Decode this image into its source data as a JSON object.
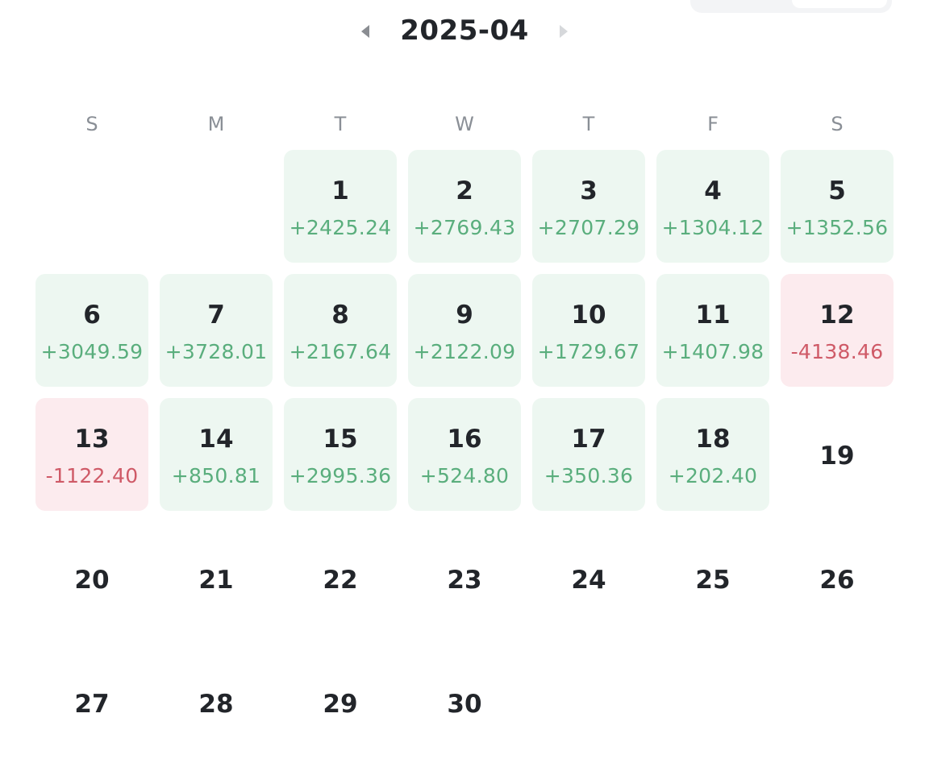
{
  "header": {
    "month": "2025-04"
  },
  "weekdays": [
    "S",
    "M",
    "T",
    "W",
    "T",
    "F",
    "S"
  ],
  "days": [
    {
      "day": 1,
      "pnl": "+2425.24"
    },
    {
      "day": 2,
      "pnl": "+2769.43"
    },
    {
      "day": 3,
      "pnl": "+2707.29"
    },
    {
      "day": 4,
      "pnl": "+1304.12"
    },
    {
      "day": 5,
      "pnl": "+1352.56"
    },
    {
      "day": 6,
      "pnl": "+3049.59"
    },
    {
      "day": 7,
      "pnl": "+3728.01"
    },
    {
      "day": 8,
      "pnl": "+2167.64"
    },
    {
      "day": 9,
      "pnl": "+2122.09"
    },
    {
      "day": 10,
      "pnl": "+1729.67"
    },
    {
      "day": 11,
      "pnl": "+1407.98"
    },
    {
      "day": 12,
      "pnl": "-4138.46"
    },
    {
      "day": 13,
      "pnl": "-1122.40"
    },
    {
      "day": 14,
      "pnl": "+850.81"
    },
    {
      "day": 15,
      "pnl": "+2995.36"
    },
    {
      "day": 16,
      "pnl": "+524.80"
    },
    {
      "day": 17,
      "pnl": "+350.36"
    },
    {
      "day": 18,
      "pnl": "+202.40"
    },
    {
      "day": 19
    },
    {
      "day": 20
    },
    {
      "day": 21
    },
    {
      "day": 22
    },
    {
      "day": 23
    },
    {
      "day": 24
    },
    {
      "day": 25
    },
    {
      "day": 26
    },
    {
      "day": 27
    },
    {
      "day": 28
    },
    {
      "day": 29
    },
    {
      "day": 30
    }
  ]
}
